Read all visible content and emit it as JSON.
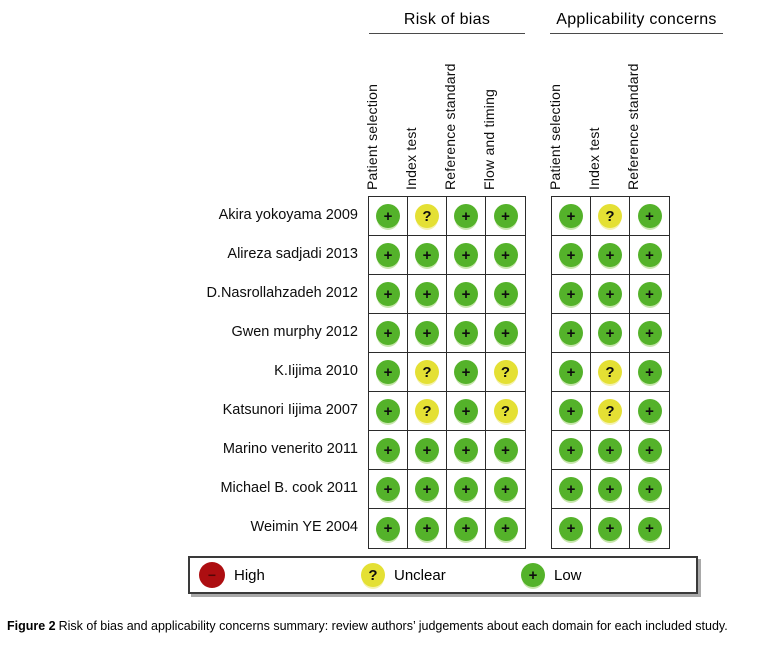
{
  "chart_data": {
    "type": "table",
    "title": "Risk of bias and applicability concerns summary",
    "column_groups": [
      {
        "name": "Risk of bias",
        "key": "risk_of_bias",
        "columns": [
          "Patient selection",
          "Index test",
          "Reference standard",
          "Flow and timing"
        ]
      },
      {
        "name": "Applicability concerns",
        "key": "applicability_concerns",
        "columns": [
          "Patient selection",
          "Index test",
          "Reference standard"
        ]
      }
    ],
    "judgement_scale": [
      "high",
      "unclear",
      "low"
    ],
    "rows": [
      {
        "study": "Akira yokoyama 2009",
        "risk_of_bias": [
          "low",
          "unclear",
          "low",
          "low"
        ],
        "applicability_concerns": [
          "low",
          "unclear",
          "low"
        ]
      },
      {
        "study": "Alireza sadjadi 2013",
        "risk_of_bias": [
          "low",
          "low",
          "low",
          "low"
        ],
        "applicability_concerns": [
          "low",
          "low",
          "low"
        ]
      },
      {
        "study": "D.Nasrollahzadeh 2012",
        "risk_of_bias": [
          "low",
          "low",
          "low",
          "low"
        ],
        "applicability_concerns": [
          "low",
          "low",
          "low"
        ]
      },
      {
        "study": "Gwen murphy 2012",
        "risk_of_bias": [
          "low",
          "low",
          "low",
          "low"
        ],
        "applicability_concerns": [
          "low",
          "low",
          "low"
        ]
      },
      {
        "study": "K.Iijima 2010",
        "risk_of_bias": [
          "low",
          "unclear",
          "low",
          "unclear"
        ],
        "applicability_concerns": [
          "low",
          "unclear",
          "low"
        ]
      },
      {
        "study": "Katsunori Iijima 2007",
        "risk_of_bias": [
          "low",
          "unclear",
          "low",
          "unclear"
        ],
        "applicability_concerns": [
          "low",
          "unclear",
          "low"
        ]
      },
      {
        "study": "Marino venerito 2011",
        "risk_of_bias": [
          "low",
          "low",
          "low",
          "low"
        ],
        "applicability_concerns": [
          "low",
          "low",
          "low"
        ]
      },
      {
        "study": "Michael B. cook 2011",
        "risk_of_bias": [
          "low",
          "low",
          "low",
          "low"
        ],
        "applicability_concerns": [
          "low",
          "low",
          "low"
        ]
      },
      {
        "study": "Weimin YE 2004",
        "risk_of_bias": [
          "low",
          "low",
          "low",
          "low"
        ],
        "applicability_concerns": [
          "low",
          "low",
          "low"
        ]
      }
    ]
  },
  "symbols": {
    "high": "−",
    "unclear": "?",
    "low": "+"
  },
  "colors": {
    "high": "#ad0e11",
    "unclear": "#e4e034",
    "low": "#54b22a"
  },
  "legend": {
    "items": [
      {
        "level": "high",
        "label": "High"
      },
      {
        "level": "unclear",
        "label": "Unclear"
      },
      {
        "level": "low",
        "label": "Low"
      }
    ]
  },
  "caption": {
    "label": "Figure 2",
    "text": "Risk of bias and applicability concerns summary: review authors’ judgements about each domain for each included study."
  }
}
